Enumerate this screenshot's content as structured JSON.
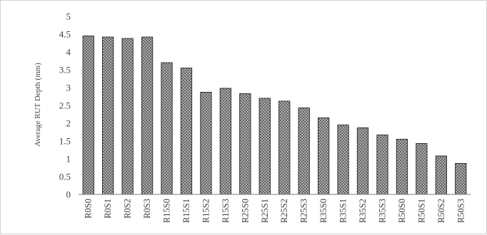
{
  "chart_data": {
    "type": "bar",
    "title": "",
    "xlabel": "",
    "ylabel": "Average RUT Depth (mm)",
    "ylim": [
      0,
      5
    ],
    "yticks": [
      0,
      0.5,
      1,
      1.5,
      2,
      2.5,
      3,
      3.5,
      4,
      4.5,
      5
    ],
    "ytick_labels": [
      "0",
      "0.5",
      "1",
      "1.5",
      "2",
      "2.5",
      "3",
      "3.5",
      "4",
      "4.5",
      "5"
    ],
    "grid": false,
    "legend": "none",
    "categories": [
      "R0S0",
      "R0S1",
      "R0S2",
      "R0S3",
      "R15S0",
      "R15S1",
      "R15S2",
      "R15S3",
      "R25S0",
      "R25S1",
      "R25S2",
      "R25S3",
      "R35S0",
      "R35S1",
      "R35S2",
      "R35S3",
      "R50S0",
      "R50S1",
      "R50S2",
      "R50S3"
    ],
    "values": [
      4.45,
      4.42,
      4.38,
      4.42,
      3.7,
      3.55,
      2.87,
      2.98,
      2.83,
      2.7,
      2.62,
      2.43,
      2.15,
      1.95,
      1.87,
      1.67,
      1.55,
      1.43,
      1.08,
      0.87
    ],
    "colors": {
      "bar_fill": "#bfbfbf",
      "bar_pattern": "#595959",
      "bar_edge": "#262626",
      "axis": "#7f7f7f",
      "text": "#404040"
    }
  }
}
